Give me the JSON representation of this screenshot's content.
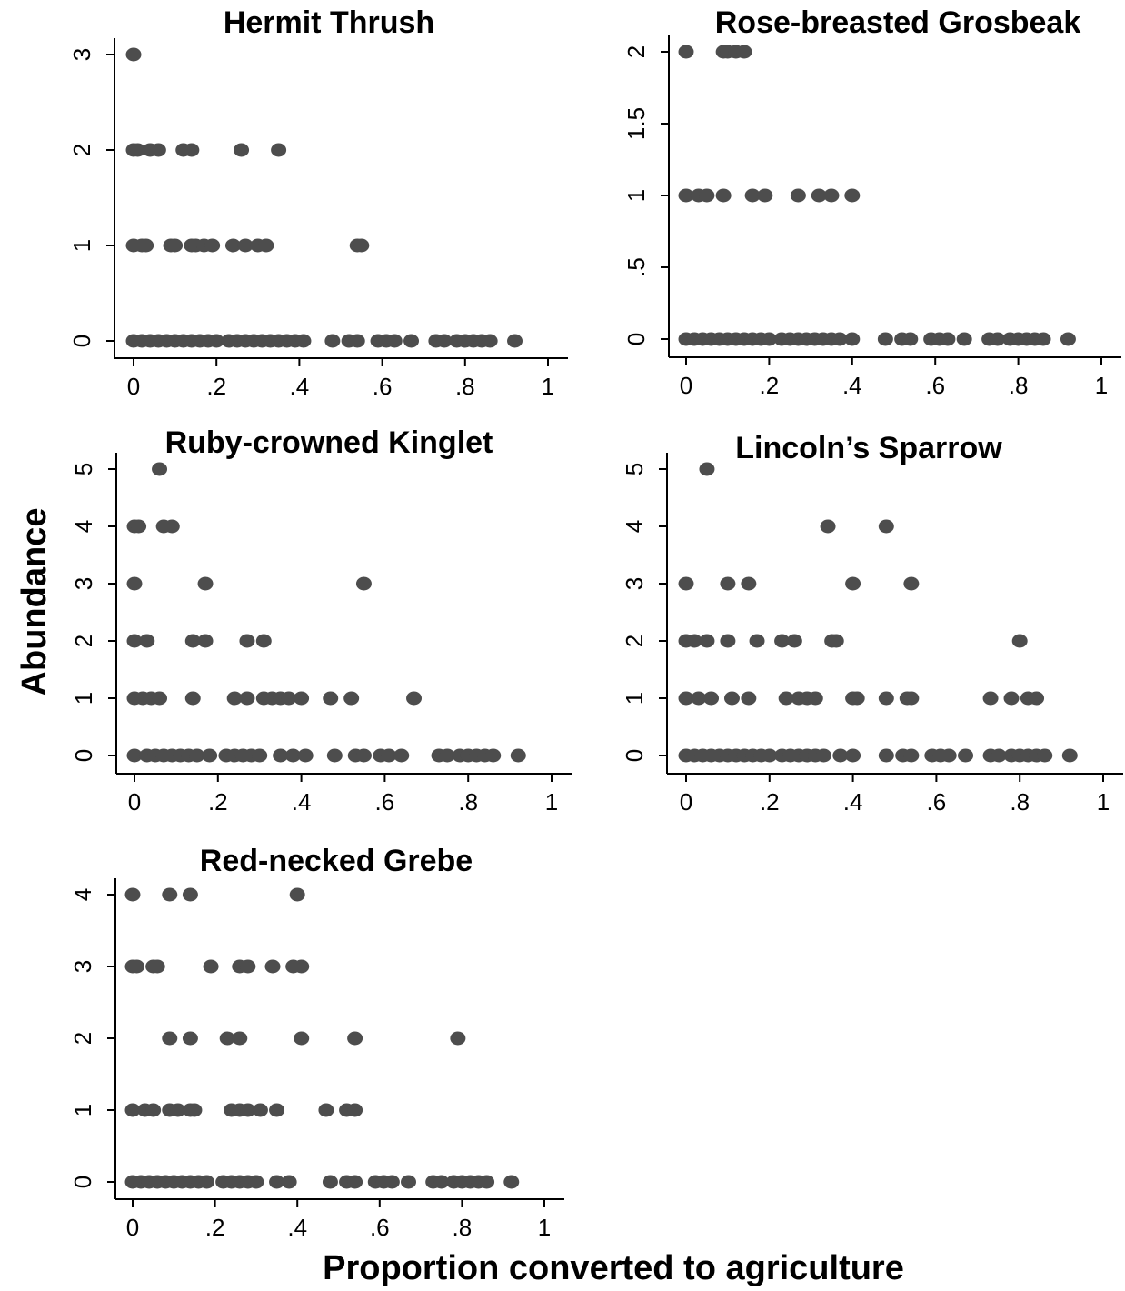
{
  "colors": {
    "point": "#4d4d4d",
    "axis": "#000000",
    "background": "#ffffff"
  },
  "figure": {
    "ylabel": "Abundance",
    "xlabel": "Proportion converted to agriculture"
  },
  "chart_data": [
    {
      "type": "scatter",
      "title": "Hermit Thrush",
      "xlim": [
        0,
        1
      ],
      "ylim": [
        0,
        3
      ],
      "x_ticks": [
        "0",
        ".2",
        ".4",
        ".6",
        ".8",
        "1"
      ],
      "y_ticks": [
        "0",
        "1",
        "2",
        "3"
      ],
      "grid": false,
      "points": [
        [
          0,
          3
        ],
        [
          0,
          2
        ],
        [
          0.01,
          2
        ],
        [
          0.04,
          2
        ],
        [
          0.06,
          2
        ],
        [
          0.12,
          2
        ],
        [
          0.14,
          2
        ],
        [
          0.26,
          2
        ],
        [
          0.35,
          2
        ],
        [
          0,
          1
        ],
        [
          0.02,
          1
        ],
        [
          0.03,
          1
        ],
        [
          0.09,
          1
        ],
        [
          0.1,
          1
        ],
        [
          0.14,
          1
        ],
        [
          0.15,
          1
        ],
        [
          0.17,
          1
        ],
        [
          0.19,
          1
        ],
        [
          0.24,
          1
        ],
        [
          0.27,
          1
        ],
        [
          0.3,
          1
        ],
        [
          0.32,
          1
        ],
        [
          0.54,
          1
        ],
        [
          0.55,
          1
        ],
        [
          0,
          0
        ],
        [
          0.02,
          0
        ],
        [
          0.04,
          0
        ],
        [
          0.06,
          0
        ],
        [
          0.08,
          0
        ],
        [
          0.1,
          0
        ],
        [
          0.12,
          0
        ],
        [
          0.14,
          0
        ],
        [
          0.16,
          0
        ],
        [
          0.18,
          0
        ],
        [
          0.2,
          0
        ],
        [
          0.23,
          0
        ],
        [
          0.25,
          0
        ],
        [
          0.27,
          0
        ],
        [
          0.29,
          0
        ],
        [
          0.31,
          0
        ],
        [
          0.33,
          0
        ],
        [
          0.35,
          0
        ],
        [
          0.37,
          0
        ],
        [
          0.39,
          0
        ],
        [
          0.41,
          0
        ],
        [
          0.48,
          0
        ],
        [
          0.52,
          0
        ],
        [
          0.54,
          0
        ],
        [
          0.59,
          0
        ],
        [
          0.61,
          0
        ],
        [
          0.63,
          0
        ],
        [
          0.67,
          0
        ],
        [
          0.73,
          0
        ],
        [
          0.75,
          0
        ],
        [
          0.78,
          0
        ],
        [
          0.8,
          0
        ],
        [
          0.82,
          0
        ],
        [
          0.84,
          0
        ],
        [
          0.86,
          0
        ],
        [
          0.92,
          0
        ]
      ]
    },
    {
      "type": "scatter",
      "title": "Rose-breasted Grosbeak",
      "xlim": [
        0,
        1
      ],
      "ylim": [
        0,
        2
      ],
      "x_ticks": [
        "0",
        ".2",
        ".4",
        ".6",
        ".8",
        "1"
      ],
      "y_ticks": [
        "0",
        ".5",
        "1",
        "1.5",
        "2"
      ],
      "grid": false,
      "points": [
        [
          0,
          2
        ],
        [
          0.09,
          2
        ],
        [
          0.1,
          2
        ],
        [
          0.12,
          2
        ],
        [
          0.14,
          2
        ],
        [
          0,
          1
        ],
        [
          0.03,
          1
        ],
        [
          0.05,
          1
        ],
        [
          0.09,
          1
        ],
        [
          0.16,
          1
        ],
        [
          0.19,
          1
        ],
        [
          0.27,
          1
        ],
        [
          0.32,
          1
        ],
        [
          0.35,
          1
        ],
        [
          0.4,
          1
        ],
        [
          0,
          0
        ],
        [
          0.02,
          0
        ],
        [
          0.04,
          0
        ],
        [
          0.06,
          0
        ],
        [
          0.08,
          0
        ],
        [
          0.1,
          0
        ],
        [
          0.12,
          0
        ],
        [
          0.14,
          0
        ],
        [
          0.16,
          0
        ],
        [
          0.18,
          0
        ],
        [
          0.2,
          0
        ],
        [
          0.23,
          0
        ],
        [
          0.25,
          0
        ],
        [
          0.27,
          0
        ],
        [
          0.29,
          0
        ],
        [
          0.31,
          0
        ],
        [
          0.33,
          0
        ],
        [
          0.35,
          0
        ],
        [
          0.37,
          0
        ],
        [
          0.4,
          0
        ],
        [
          0.48,
          0
        ],
        [
          0.52,
          0
        ],
        [
          0.54,
          0
        ],
        [
          0.59,
          0
        ],
        [
          0.61,
          0
        ],
        [
          0.63,
          0
        ],
        [
          0.67,
          0
        ],
        [
          0.73,
          0
        ],
        [
          0.75,
          0
        ],
        [
          0.78,
          0
        ],
        [
          0.8,
          0
        ],
        [
          0.82,
          0
        ],
        [
          0.84,
          0
        ],
        [
          0.86,
          0
        ],
        [
          0.92,
          0
        ]
      ]
    },
    {
      "type": "scatter",
      "title": "Ruby-crowned Kinglet",
      "xlim": [
        0,
        1
      ],
      "ylim": [
        0,
        5
      ],
      "x_ticks": [
        "0",
        ".2",
        ".4",
        ".6",
        ".8",
        "1"
      ],
      "y_ticks": [
        "0",
        "1",
        "2",
        "3",
        "4",
        "5"
      ],
      "grid": false,
      "points": [
        [
          0.06,
          5
        ],
        [
          0,
          4
        ],
        [
          0.01,
          4
        ],
        [
          0.07,
          4
        ],
        [
          0.09,
          4
        ],
        [
          0,
          3
        ],
        [
          0.17,
          3
        ],
        [
          0.55,
          3
        ],
        [
          0,
          2
        ],
        [
          0.03,
          2
        ],
        [
          0.14,
          2
        ],
        [
          0.17,
          2
        ],
        [
          0.27,
          2
        ],
        [
          0.31,
          2
        ],
        [
          0,
          1
        ],
        [
          0.02,
          1
        ],
        [
          0.04,
          1
        ],
        [
          0.06,
          1
        ],
        [
          0.14,
          1
        ],
        [
          0.24,
          1
        ],
        [
          0.27,
          1
        ],
        [
          0.31,
          1
        ],
        [
          0.33,
          1
        ],
        [
          0.35,
          1
        ],
        [
          0.37,
          1
        ],
        [
          0.4,
          1
        ],
        [
          0.47,
          1
        ],
        [
          0.52,
          1
        ],
        [
          0.67,
          1
        ],
        [
          0,
          0
        ],
        [
          0.03,
          0
        ],
        [
          0.05,
          0
        ],
        [
          0.07,
          0
        ],
        [
          0.09,
          0
        ],
        [
          0.11,
          0
        ],
        [
          0.13,
          0
        ],
        [
          0.15,
          0
        ],
        [
          0.18,
          0
        ],
        [
          0.22,
          0
        ],
        [
          0.24,
          0
        ],
        [
          0.26,
          0
        ],
        [
          0.28,
          0
        ],
        [
          0.3,
          0
        ],
        [
          0.35,
          0
        ],
        [
          0.38,
          0
        ],
        [
          0.41,
          0
        ],
        [
          0.48,
          0
        ],
        [
          0.53,
          0
        ],
        [
          0.55,
          0
        ],
        [
          0.59,
          0
        ],
        [
          0.61,
          0
        ],
        [
          0.64,
          0
        ],
        [
          0.73,
          0
        ],
        [
          0.75,
          0
        ],
        [
          0.78,
          0
        ],
        [
          0.8,
          0
        ],
        [
          0.82,
          0
        ],
        [
          0.84,
          0
        ],
        [
          0.86,
          0
        ],
        [
          0.92,
          0
        ]
      ]
    },
    {
      "type": "scatter",
      "title": "Lincoln’s Sparrow",
      "xlim": [
        0,
        1
      ],
      "ylim": [
        0,
        5
      ],
      "x_ticks": [
        "0",
        ".2",
        ".4",
        ".6",
        ".8",
        "1"
      ],
      "y_ticks": [
        "0",
        "1",
        "2",
        "3",
        "4",
        "5"
      ],
      "grid": false,
      "points": [
        [
          0.05,
          5
        ],
        [
          0.34,
          4
        ],
        [
          0.48,
          4
        ],
        [
          0,
          3
        ],
        [
          0.1,
          3
        ],
        [
          0.15,
          3
        ],
        [
          0.4,
          3
        ],
        [
          0.54,
          3
        ],
        [
          0,
          2
        ],
        [
          0.02,
          2
        ],
        [
          0.05,
          2
        ],
        [
          0.1,
          2
        ],
        [
          0.17,
          2
        ],
        [
          0.23,
          2
        ],
        [
          0.26,
          2
        ],
        [
          0.35,
          2
        ],
        [
          0.36,
          2
        ],
        [
          0.8,
          2
        ],
        [
          0,
          1
        ],
        [
          0.03,
          1
        ],
        [
          0.06,
          1
        ],
        [
          0.11,
          1
        ],
        [
          0.15,
          1
        ],
        [
          0.24,
          1
        ],
        [
          0.27,
          1
        ],
        [
          0.29,
          1
        ],
        [
          0.31,
          1
        ],
        [
          0.4,
          1
        ],
        [
          0.41,
          1
        ],
        [
          0.48,
          1
        ],
        [
          0.53,
          1
        ],
        [
          0.54,
          1
        ],
        [
          0.73,
          1
        ],
        [
          0.78,
          1
        ],
        [
          0.82,
          1
        ],
        [
          0.84,
          1
        ],
        [
          0,
          0
        ],
        [
          0.02,
          0
        ],
        [
          0.04,
          0
        ],
        [
          0.06,
          0
        ],
        [
          0.08,
          0
        ],
        [
          0.1,
          0
        ],
        [
          0.12,
          0
        ],
        [
          0.14,
          0
        ],
        [
          0.16,
          0
        ],
        [
          0.18,
          0
        ],
        [
          0.2,
          0
        ],
        [
          0.23,
          0
        ],
        [
          0.25,
          0
        ],
        [
          0.27,
          0
        ],
        [
          0.29,
          0
        ],
        [
          0.31,
          0
        ],
        [
          0.33,
          0
        ],
        [
          0.37,
          0
        ],
        [
          0.4,
          0
        ],
        [
          0.48,
          0
        ],
        [
          0.52,
          0
        ],
        [
          0.54,
          0
        ],
        [
          0.59,
          0
        ],
        [
          0.61,
          0
        ],
        [
          0.63,
          0
        ],
        [
          0.67,
          0
        ],
        [
          0.73,
          0
        ],
        [
          0.75,
          0
        ],
        [
          0.78,
          0
        ],
        [
          0.8,
          0
        ],
        [
          0.82,
          0
        ],
        [
          0.84,
          0
        ],
        [
          0.86,
          0
        ],
        [
          0.92,
          0
        ]
      ]
    },
    {
      "type": "scatter",
      "title": "Red-necked Grebe",
      "xlim": [
        0,
        1
      ],
      "ylim": [
        0,
        4
      ],
      "x_ticks": [
        "0",
        ".2",
        ".4",
        ".6",
        ".8",
        "1"
      ],
      "y_ticks": [
        "0",
        "1",
        "2",
        "3",
        "4"
      ],
      "grid": false,
      "points": [
        [
          0,
          4
        ],
        [
          0.09,
          4
        ],
        [
          0.14,
          4
        ],
        [
          0.4,
          4
        ],
        [
          0,
          3
        ],
        [
          0.01,
          3
        ],
        [
          0.05,
          3
        ],
        [
          0.06,
          3
        ],
        [
          0.19,
          3
        ],
        [
          0.26,
          3
        ],
        [
          0.28,
          3
        ],
        [
          0.34,
          3
        ],
        [
          0.39,
          3
        ],
        [
          0.41,
          3
        ],
        [
          0.09,
          2
        ],
        [
          0.14,
          2
        ],
        [
          0.23,
          2
        ],
        [
          0.26,
          2
        ],
        [
          0.41,
          2
        ],
        [
          0.54,
          2
        ],
        [
          0.79,
          2
        ],
        [
          0,
          1
        ],
        [
          0.03,
          1
        ],
        [
          0.05,
          1
        ],
        [
          0.09,
          1
        ],
        [
          0.11,
          1
        ],
        [
          0.14,
          1
        ],
        [
          0.15,
          1
        ],
        [
          0.24,
          1
        ],
        [
          0.26,
          1
        ],
        [
          0.28,
          1
        ],
        [
          0.31,
          1
        ],
        [
          0.35,
          1
        ],
        [
          0.47,
          1
        ],
        [
          0.52,
          1
        ],
        [
          0.54,
          1
        ],
        [
          0,
          0
        ],
        [
          0.02,
          0
        ],
        [
          0.04,
          0
        ],
        [
          0.06,
          0
        ],
        [
          0.08,
          0
        ],
        [
          0.1,
          0
        ],
        [
          0.12,
          0
        ],
        [
          0.14,
          0
        ],
        [
          0.16,
          0
        ],
        [
          0.18,
          0
        ],
        [
          0.22,
          0
        ],
        [
          0.24,
          0
        ],
        [
          0.26,
          0
        ],
        [
          0.28,
          0
        ],
        [
          0.3,
          0
        ],
        [
          0.35,
          0
        ],
        [
          0.38,
          0
        ],
        [
          0.48,
          0
        ],
        [
          0.52,
          0
        ],
        [
          0.54,
          0
        ],
        [
          0.59,
          0
        ],
        [
          0.61,
          0
        ],
        [
          0.63,
          0
        ],
        [
          0.67,
          0
        ],
        [
          0.73,
          0
        ],
        [
          0.75,
          0
        ],
        [
          0.78,
          0
        ],
        [
          0.8,
          0
        ],
        [
          0.82,
          0
        ],
        [
          0.84,
          0
        ],
        [
          0.86,
          0
        ],
        [
          0.92,
          0
        ]
      ]
    }
  ]
}
